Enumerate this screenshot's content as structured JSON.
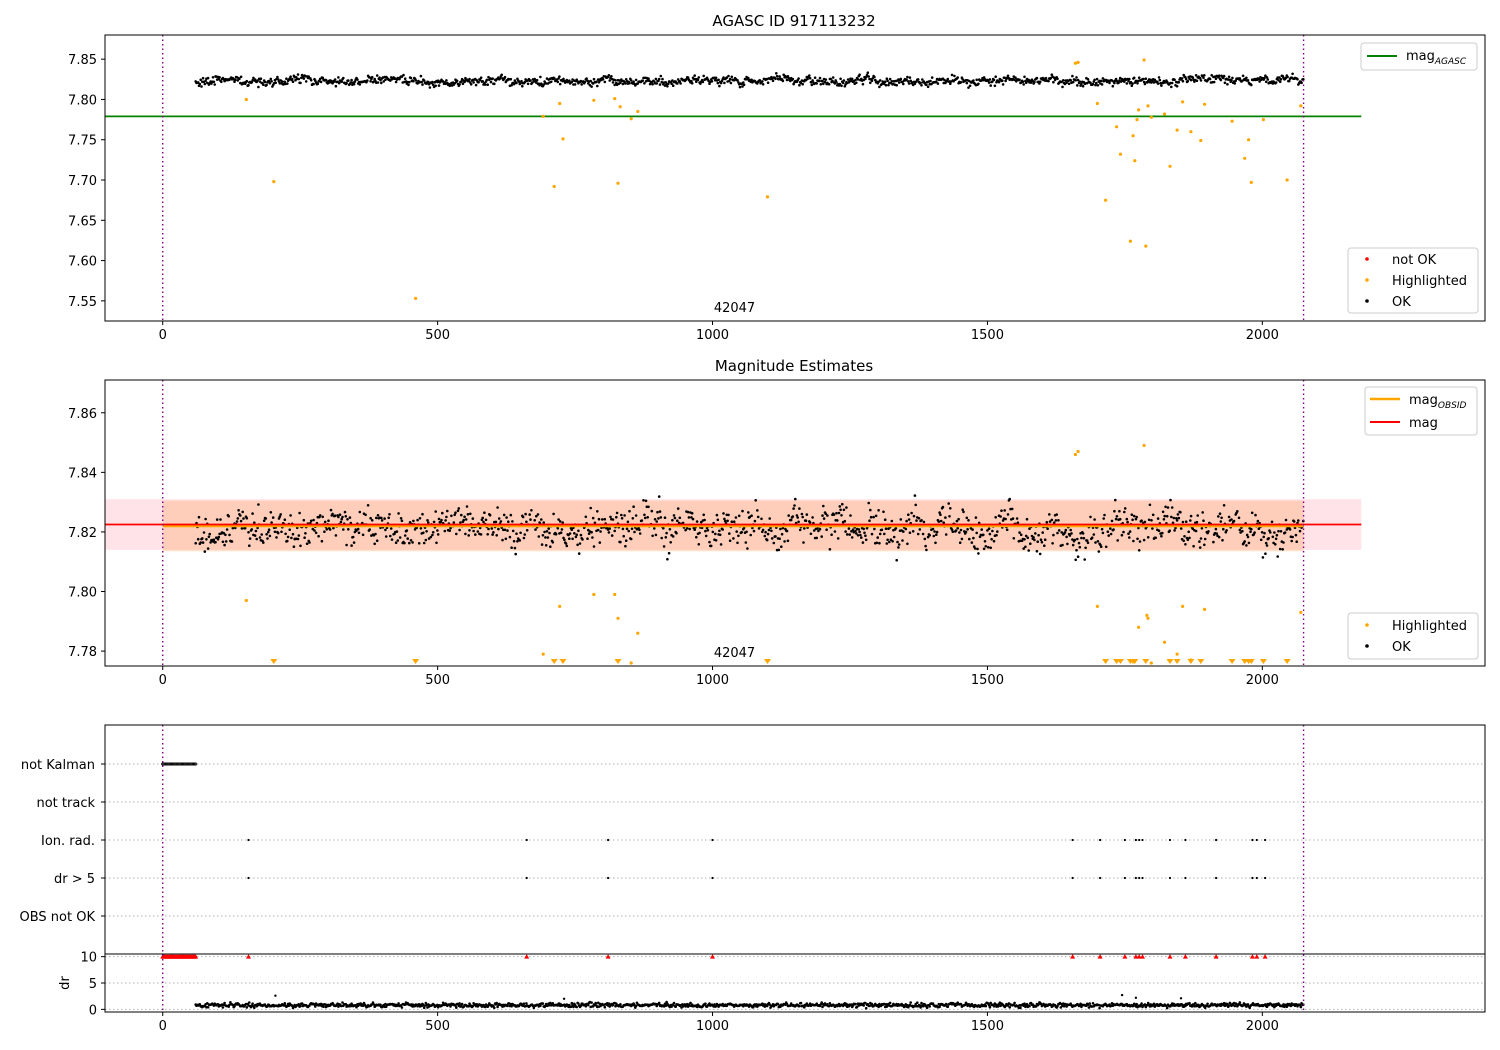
{
  "chart_data": [
    {
      "type": "scatter",
      "title": "AGASC ID 917113232",
      "xlim": [
        -105,
        2405
      ],
      "ylim": [
        7.525,
        7.88
      ],
      "xticks": [
        0,
        500,
        1000,
        1500,
        2000
      ],
      "xtick_labels": [
        "0",
        "500",
        "1000",
        "1500",
        "2000"
      ],
      "yticks": [
        7.55,
        7.6,
        7.65,
        7.7,
        7.75,
        7.8,
        7.85
      ],
      "ytick_labels": [
        "7.55",
        "7.60",
        "7.65",
        "7.70",
        "7.75",
        "7.80",
        "7.85"
      ],
      "obsid_label": "42047",
      "obsid_label_x": 1040,
      "vlines": [
        0,
        2075
      ],
      "hline": {
        "name": "mag_AGASC",
        "value": 7.779,
        "x_range": [
          -105,
          2180
        ],
        "color": "#008000"
      },
      "ok_band": {
        "x_range": [
          60,
          2075
        ],
        "center": 7.823,
        "spread": 0.007,
        "color": "#000000"
      },
      "legend_lines": [
        {
          "label": "mag",
          "sub": "AGASC",
          "color": "#008000"
        }
      ],
      "legend_points": [
        {
          "label": "not OK",
          "color": "#ff0000"
        },
        {
          "label": "Highlighted",
          "color": "#ffa500"
        },
        {
          "label": "OK",
          "color": "#000000"
        }
      ],
      "highlighted_points": [
        [
          152,
          7.8
        ],
        [
          202,
          7.698
        ],
        [
          460,
          7.553
        ],
        [
          692,
          7.779
        ],
        [
          712,
          7.692
        ],
        [
          722,
          7.795
        ],
        [
          728,
          7.751
        ],
        [
          784,
          7.799
        ],
        [
          822,
          7.801
        ],
        [
          828,
          7.696
        ],
        [
          832,
          7.791
        ],
        [
          852,
          7.776
        ],
        [
          864,
          7.785
        ],
        [
          1100,
          7.679
        ],
        [
          1660,
          7.845
        ],
        [
          1665,
          7.846
        ],
        [
          1700,
          7.795
        ],
        [
          1715,
          7.675
        ],
        [
          1735,
          7.766
        ],
        [
          1742,
          7.732
        ],
        [
          1760,
          7.624
        ],
        [
          1765,
          7.755
        ],
        [
          1768,
          7.724
        ],
        [
          1772,
          7.775
        ],
        [
          1775,
          7.787
        ],
        [
          1785,
          7.849
        ],
        [
          1788,
          7.618
        ],
        [
          1792,
          7.792
        ],
        [
          1798,
          7.778
        ],
        [
          1822,
          7.782
        ],
        [
          1832,
          7.717
        ],
        [
          1845,
          7.762
        ],
        [
          1855,
          7.797
        ],
        [
          1870,
          7.76
        ],
        [
          1888,
          7.749
        ],
        [
          1895,
          7.794
        ],
        [
          1945,
          7.773
        ],
        [
          1968,
          7.727
        ],
        [
          1975,
          7.75
        ],
        [
          1980,
          7.697
        ],
        [
          2002,
          7.775
        ],
        [
          2045,
          7.7
        ],
        [
          2070,
          7.792
        ]
      ]
    },
    {
      "type": "scatter",
      "title": "Magnitude Estimates",
      "xlim": [
        -105,
        2405
      ],
      "ylim": [
        7.775,
        7.871
      ],
      "xticks": [
        0,
        500,
        1000,
        1500,
        2000
      ],
      "xtick_labels": [
        "0",
        "500",
        "1000",
        "1500",
        "2000"
      ],
      "yticks": [
        7.78,
        7.8,
        7.82,
        7.84,
        7.86
      ],
      "ytick_labels": [
        "7.78",
        "7.80",
        "7.82",
        "7.84",
        "7.86"
      ],
      "obsid_label": "42047",
      "obsid_label_x": 1040,
      "vlines": [
        0,
        2075
      ],
      "mag_obsid": {
        "value": 7.822,
        "std": 0.0085,
        "x_range": [
          0,
          2075
        ],
        "color": "#ffa500"
      },
      "mag": {
        "value": 7.8225,
        "std": 0.0085,
        "x_range": [
          -105,
          2180
        ],
        "color": "#ff0000"
      },
      "ok_band": {
        "x_range": [
          60,
          2075
        ],
        "center": 7.8215,
        "spread": 0.008,
        "color": "#000000"
      },
      "legend_lines": [
        {
          "label": "mag",
          "sub": "OBSID",
          "color": "#ffa500"
        },
        {
          "label": "mag",
          "sub": "",
          "color": "#ff0000"
        }
      ],
      "legend_points": [
        {
          "label": "Highlighted",
          "color": "#ffa500"
        },
        {
          "label": "OK",
          "color": "#000000"
        }
      ],
      "highlighted_points": [
        [
          152,
          7.797
        ],
        [
          692,
          7.779
        ],
        [
          722,
          7.795
        ],
        [
          784,
          7.799
        ],
        [
          822,
          7.799
        ],
        [
          828,
          7.791
        ],
        [
          852,
          7.776
        ],
        [
          864,
          7.786
        ],
        [
          1660,
          7.846
        ],
        [
          1665,
          7.847
        ],
        [
          1700,
          7.795
        ],
        [
          1775,
          7.788
        ],
        [
          1785,
          7.849
        ],
        [
          1790,
          7.792
        ],
        [
          1792,
          7.791
        ],
        [
          1798,
          7.776
        ],
        [
          1822,
          7.783
        ],
        [
          1845,
          7.779
        ],
        [
          1855,
          7.795
        ],
        [
          1870,
          7.777
        ],
        [
          1895,
          7.794
        ],
        [
          2070,
          7.793
        ]
      ],
      "below_range_markers": [
        202,
        460,
        712,
        728,
        828,
        1100,
        1715,
        1735,
        1742,
        1760,
        1765,
        1768,
        1788,
        1832,
        1845,
        1870,
        1888,
        1945,
        1968,
        1975,
        1980,
        2002,
        2045
      ]
    },
    {
      "type": "scatter",
      "xlim": [
        -105,
        2405
      ],
      "xticks": [
        0,
        500,
        1000,
        1500,
        2000
      ],
      "xtick_labels": [
        "0",
        "500",
        "1000",
        "1500",
        "2000"
      ],
      "vlines": [
        0,
        2075
      ],
      "flag_rows": [
        "not Kalman",
        "not track",
        "Ion. rad.",
        "dr > 5",
        "OBS not OK"
      ],
      "flags": {
        "not Kalman": {
          "x_range": [
            0,
            60
          ],
          "step": 2
        },
        "not track": [],
        "Ion. rad.": [
          156,
          662,
          810,
          1000,
          1655,
          1705,
          1750,
          1770,
          1776,
          1782,
          1832,
          1860,
          1916,
          1982,
          1990,
          2005
        ],
        "dr > 5": [
          156,
          662,
          810,
          1000,
          1655,
          1705,
          1750,
          1770,
          1776,
          1782,
          1832,
          1860,
          1916,
          1982,
          1990,
          2005
        ],
        "OBS not OK": []
      },
      "dr_ylabel": "dr",
      "dr_ylim": [
        -0.5,
        10.5
      ],
      "dr_yticks": [
        0,
        5,
        10
      ],
      "dr_ytick_labels": [
        "0",
        "5",
        "10"
      ],
      "dr_band": {
        "x_range": [
          60,
          2075
        ],
        "center": 0.8,
        "spread": 0.3
      },
      "dr_capped_points": {
        "value": 10,
        "x_range": [
          0,
          60
        ],
        "step": 2,
        "extra": [
          156,
          662,
          810,
          1000,
          1655,
          1705,
          1750,
          1770,
          1776,
          1782,
          1832,
          1860,
          1916,
          1982,
          1990,
          2005
        ],
        "color": "#ff0000"
      },
      "dr_outliers": [
        [
          205,
          2.6
        ],
        [
          730,
          2.0
        ],
        [
          1745,
          2.7
        ],
        [
          1770,
          2.2
        ],
        [
          1852,
          2.1
        ]
      ]
    }
  ]
}
